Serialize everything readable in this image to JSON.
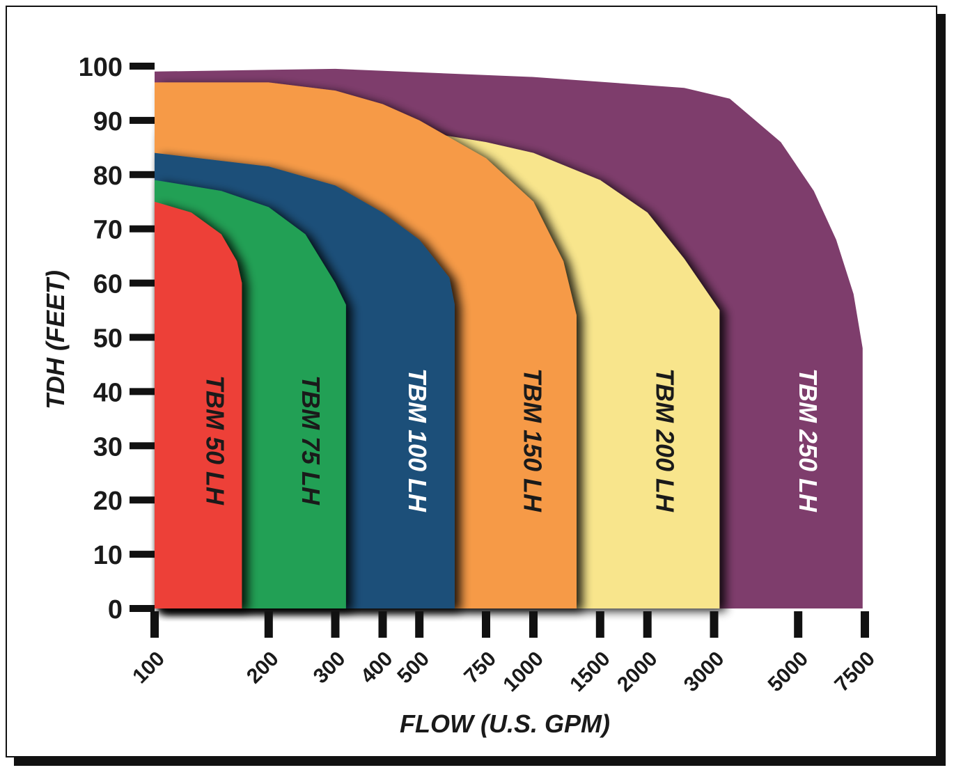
{
  "chart_data": {
    "type": "area",
    "title": "",
    "xlabel": "FLOW (U.S. GPM)",
    "ylabel": "TDH (FEET)",
    "x_scale": "log",
    "xlim": [
      100,
      7500
    ],
    "ylim": [
      0,
      100
    ],
    "x_ticks": [
      100,
      200,
      300,
      400,
      500,
      750,
      1000,
      1500,
      2000,
      3000,
      5000,
      7500
    ],
    "y_ticks": [
      0,
      10,
      20,
      30,
      40,
      50,
      60,
      70,
      80,
      90,
      100
    ],
    "series": [
      {
        "name": "TBM 250 LH",
        "color": "#7e3d6c",
        "label_color": "#ffffff",
        "shutoff_head": 99,
        "max_flow": 7400,
        "curve": [
          [
            100,
            99
          ],
          [
            300,
            99.5
          ],
          [
            1000,
            98
          ],
          [
            2500,
            96
          ],
          [
            3300,
            94
          ],
          [
            4500,
            86
          ],
          [
            5500,
            77
          ],
          [
            6300,
            68
          ],
          [
            7000,
            58
          ],
          [
            7400,
            48
          ],
          [
            7400,
            0
          ]
        ]
      },
      {
        "name": "TBM 200 LH",
        "color": "#f8e58c",
        "label_color": "#1a1a1a",
        "shutoff_head": 88,
        "max_flow": 3100,
        "curve": [
          [
            500,
            88
          ],
          [
            750,
            86
          ],
          [
            1000,
            84
          ],
          [
            1500,
            79
          ],
          [
            2000,
            73
          ],
          [
            2500,
            64.5
          ],
          [
            3100,
            55
          ],
          [
            3100,
            0
          ]
        ]
      },
      {
        "name": "TBM 150 LH",
        "color": "#f69a46",
        "label_color": "#1a1a1a",
        "shutoff_head": 97,
        "max_flow": 1300,
        "curve": [
          [
            100,
            97
          ],
          [
            200,
            97
          ],
          [
            300,
            95.5
          ],
          [
            400,
            93
          ],
          [
            500,
            90
          ],
          [
            750,
            83
          ],
          [
            1000,
            75
          ],
          [
            1200,
            64
          ],
          [
            1300,
            54
          ],
          [
            1300,
            0
          ]
        ]
      },
      {
        "name": "TBM 100 LH",
        "color": "#1f5079",
        "label_color": "#ffffff",
        "shutoff_head": 84,
        "max_flow": 620,
        "curve": [
          [
            100,
            84
          ],
          [
            200,
            81.5
          ],
          [
            300,
            78
          ],
          [
            400,
            73
          ],
          [
            500,
            68
          ],
          [
            600,
            61
          ],
          [
            620,
            56
          ],
          [
            620,
            0
          ]
        ]
      },
      {
        "name": "TBM 75 LH",
        "color": "#21a055",
        "label_color": "#1a1a1a",
        "shutoff_head": 79,
        "max_flow": 320,
        "curve": [
          [
            100,
            79
          ],
          [
            150,
            77
          ],
          [
            200,
            74
          ],
          [
            250,
            69
          ],
          [
            300,
            60
          ],
          [
            320,
            56
          ],
          [
            320,
            0
          ]
        ]
      },
      {
        "name": "TBM 50 LH",
        "color": "#ed4137",
        "label_color": "#1a1a1a",
        "shutoff_head": 75,
        "max_flow": 170,
        "curve": [
          [
            100,
            75
          ],
          [
            125,
            73
          ],
          [
            150,
            69
          ],
          [
            165,
            64
          ],
          [
            170,
            60
          ],
          [
            170,
            0
          ]
        ]
      }
    ]
  }
}
